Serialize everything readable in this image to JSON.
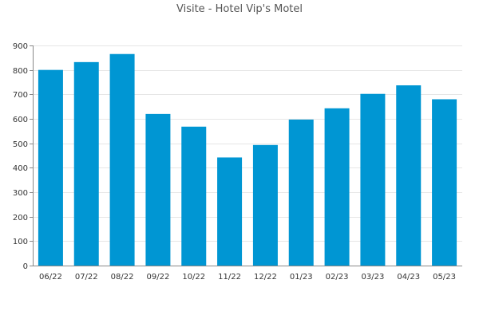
{
  "chart_data": {
    "type": "bar",
    "title": "Visite - Hotel Vip's Motel",
    "xlabel": "",
    "ylabel": "",
    "categories": [
      "06/22",
      "07/22",
      "08/22",
      "09/22",
      "10/22",
      "11/22",
      "12/22",
      "01/23",
      "02/23",
      "03/23",
      "04/23",
      "05/23"
    ],
    "values": [
      800,
      832,
      865,
      620,
      568,
      442,
      493,
      597,
      643,
      702,
      737,
      680
    ],
    "ylim": [
      0,
      900
    ],
    "yticks": [
      0,
      100,
      200,
      300,
      400,
      500,
      600,
      700,
      800,
      900
    ],
    "grid": true,
    "legend": "none",
    "bar_color": "#0096d3"
  }
}
